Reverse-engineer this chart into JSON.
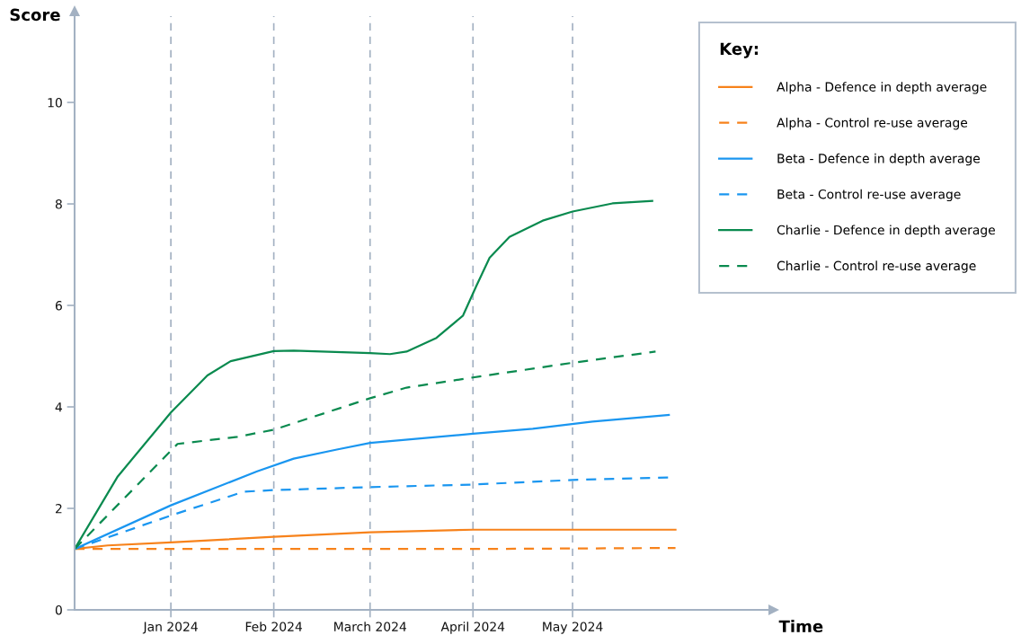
{
  "chart_data": {
    "type": "line",
    "xlabel": "Time",
    "ylabel": "Score",
    "legend_title": "Key:",
    "legend": "right",
    "grid": "x",
    "marker": "none",
    "xlim": [
      "2023-12-03",
      "2024-06-29"
    ],
    "xticks": [
      {
        "value": "2024-01-01",
        "label": "Jan 2024"
      },
      {
        "value": "2024-02-01",
        "label": "Feb 2024"
      },
      {
        "value": "2024-03-01",
        "label": "March 2024"
      },
      {
        "value": "2024-04-01",
        "label": "April 2024"
      },
      {
        "value": "2024-05-01",
        "label": "May 2024"
      }
    ],
    "ylim": [
      0,
      11.7
    ],
    "yticks": [
      0,
      2,
      4,
      6,
      8,
      10
    ],
    "series": [
      {
        "name": "Alpha - Defence in depth average",
        "color": "#f7821b",
        "line_style": "solid",
        "x": [
          "2023-12-03",
          "2023-12-13",
          "2024-01-01",
          "2024-02-01",
          "2024-03-01",
          "2024-04-01",
          "2024-05-01",
          "2024-06-01"
        ],
        "values": [
          1.2,
          1.27,
          1.33,
          1.44,
          1.53,
          1.58,
          1.58,
          1.58
        ]
      },
      {
        "name": "Alpha - Control re-use average",
        "color": "#f7821b",
        "line_style": "dashed",
        "x": [
          "2023-12-03",
          "2024-01-01",
          "2024-04-01",
          "2024-06-01"
        ],
        "values": [
          1.2,
          1.2,
          1.2,
          1.22
        ]
      },
      {
        "name": "Beta - Defence in depth average",
        "color": "#1a96f0",
        "line_style": "solid",
        "x": [
          "2023-12-03",
          "2024-01-01",
          "2024-01-27",
          "2024-02-07",
          "2024-02-20",
          "2024-03-01",
          "2024-04-01",
          "2024-04-19",
          "2024-05-07",
          "2024-05-30"
        ],
        "values": [
          1.2,
          2.06,
          2.73,
          2.98,
          3.16,
          3.29,
          3.47,
          3.57,
          3.71,
          3.84
        ]
      },
      {
        "name": "Beta - Control re-use average",
        "color": "#1a96f0",
        "line_style": "dashed",
        "x": [
          "2023-12-03",
          "2024-01-01",
          "2024-01-23",
          "2024-02-01",
          "2024-03-01",
          "2024-04-01",
          "2024-05-01",
          "2024-05-30"
        ],
        "values": [
          1.2,
          1.86,
          2.33,
          2.36,
          2.42,
          2.47,
          2.56,
          2.61
        ]
      },
      {
        "name": "Charlie - Defence in depth average",
        "color": "#0a8a4f",
        "line_style": "solid",
        "x": [
          "2023-12-03",
          "2023-12-16",
          "2024-01-01",
          "2024-01-12",
          "2024-01-19",
          "2024-02-01",
          "2024-02-07",
          "2024-03-01",
          "2024-03-07",
          "2024-03-12",
          "2024-03-21",
          "2024-03-29",
          "2024-04-02",
          "2024-04-06",
          "2024-04-12",
          "2024-04-22",
          "2024-05-01",
          "2024-05-13",
          "2024-05-25"
        ],
        "values": [
          1.2,
          2.63,
          3.89,
          4.62,
          4.9,
          5.1,
          5.11,
          5.06,
          5.04,
          5.09,
          5.36,
          5.8,
          6.38,
          6.94,
          7.35,
          7.67,
          7.85,
          8.01,
          8.06
        ]
      },
      {
        "name": "Charlie - Control re-use average",
        "color": "#0a8a4f",
        "line_style": "dashed",
        "x": [
          "2023-12-03",
          "2024-01-03",
          "2024-01-21",
          "2024-02-01",
          "2024-03-01",
          "2024-03-12",
          "2024-04-01",
          "2024-05-01",
          "2024-05-26"
        ],
        "values": [
          1.2,
          3.27,
          3.41,
          3.55,
          4.17,
          4.38,
          4.58,
          4.87,
          5.09
        ]
      }
    ]
  }
}
